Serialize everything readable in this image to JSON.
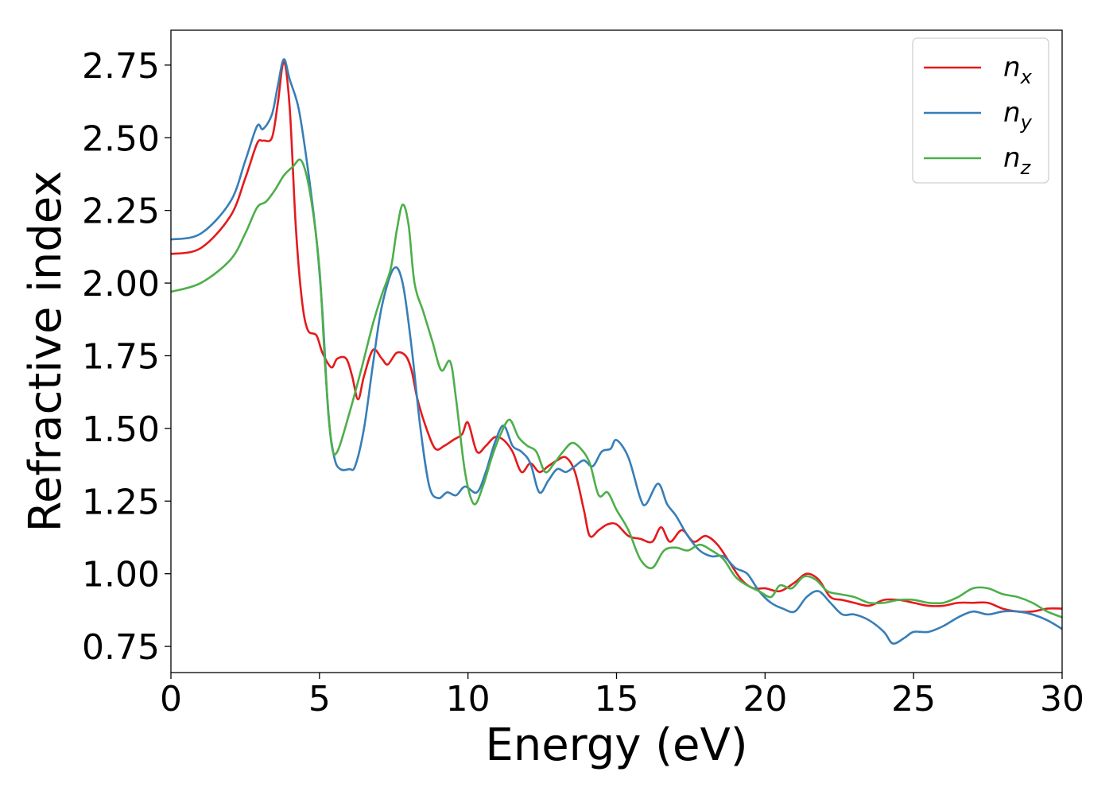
{
  "chart_data": {
    "type": "line",
    "title": "",
    "xlabel": "Energy (eV)",
    "ylabel": "Refractive index",
    "xlim": [
      0,
      30
    ],
    "ylim": [
      0.66,
      2.87
    ],
    "xticks": [
      0,
      5,
      10,
      15,
      20,
      25,
      30
    ],
    "xtick_labels": [
      "0",
      "5",
      "10",
      "15",
      "20",
      "25",
      "30"
    ],
    "yticks": [
      0.75,
      1.0,
      1.25,
      1.5,
      1.75,
      2.0,
      2.25,
      2.5,
      2.75
    ],
    "ytick_labels": [
      "0.75",
      "1.00",
      "1.25",
      "1.50",
      "1.75",
      "2.00",
      "2.25",
      "2.50",
      "2.75"
    ],
    "grid": false,
    "legend": "top-right",
    "series": [
      {
        "name_base": "n",
        "name_sub": "x",
        "color": "#e41a1c",
        "points": [
          [
            0,
            2.1
          ],
          [
            1,
            2.12
          ],
          [
            2,
            2.23
          ],
          [
            2.5,
            2.36
          ],
          [
            2.9,
            2.48
          ],
          [
            3.1,
            2.49
          ],
          [
            3.4,
            2.5
          ],
          [
            3.6,
            2.62
          ],
          [
            3.8,
            2.76
          ],
          [
            4.0,
            2.6
          ],
          [
            4.2,
            2.2
          ],
          [
            4.4,
            1.95
          ],
          [
            4.6,
            1.84
          ],
          [
            4.9,
            1.82
          ],
          [
            5.1,
            1.76
          ],
          [
            5.4,
            1.71
          ],
          [
            5.6,
            1.74
          ],
          [
            5.9,
            1.74
          ],
          [
            6.1,
            1.68
          ],
          [
            6.3,
            1.6
          ],
          [
            6.5,
            1.68
          ],
          [
            6.8,
            1.77
          ],
          [
            7.1,
            1.74
          ],
          [
            7.3,
            1.72
          ],
          [
            7.6,
            1.76
          ],
          [
            7.9,
            1.75
          ],
          [
            8.1,
            1.7
          ],
          [
            8.3,
            1.6
          ],
          [
            8.6,
            1.5
          ],
          [
            8.9,
            1.43
          ],
          [
            9.2,
            1.44
          ],
          [
            9.5,
            1.46
          ],
          [
            9.8,
            1.48
          ],
          [
            10.0,
            1.52
          ],
          [
            10.3,
            1.42
          ],
          [
            10.6,
            1.44
          ],
          [
            10.9,
            1.47
          ],
          [
            11.2,
            1.46
          ],
          [
            11.5,
            1.42
          ],
          [
            11.8,
            1.35
          ],
          [
            12.1,
            1.38
          ],
          [
            12.4,
            1.35
          ],
          [
            12.7,
            1.37
          ],
          [
            13.0,
            1.39
          ],
          [
            13.3,
            1.4
          ],
          [
            13.6,
            1.35
          ],
          [
            13.9,
            1.22
          ],
          [
            14.1,
            1.13
          ],
          [
            14.4,
            1.15
          ],
          [
            14.7,
            1.17
          ],
          [
            15.0,
            1.17
          ],
          [
            15.4,
            1.13
          ],
          [
            15.8,
            1.12
          ],
          [
            16.2,
            1.11
          ],
          [
            16.5,
            1.16
          ],
          [
            16.8,
            1.11
          ],
          [
            17.2,
            1.15
          ],
          [
            17.6,
            1.11
          ],
          [
            18.0,
            1.13
          ],
          [
            18.4,
            1.1
          ],
          [
            18.8,
            1.04
          ],
          [
            19.2,
            0.98
          ],
          [
            19.6,
            0.95
          ],
          [
            20.0,
            0.95
          ],
          [
            20.5,
            0.94
          ],
          [
            21.0,
            0.97
          ],
          [
            21.4,
            1.0
          ],
          [
            21.8,
            0.98
          ],
          [
            22.2,
            0.92
          ],
          [
            22.6,
            0.91
          ],
          [
            23.0,
            0.9
          ],
          [
            23.5,
            0.89
          ],
          [
            24.0,
            0.91
          ],
          [
            24.5,
            0.91
          ],
          [
            25.0,
            0.9
          ],
          [
            25.5,
            0.89
          ],
          [
            26.0,
            0.89
          ],
          [
            26.5,
            0.9
          ],
          [
            27.0,
            0.9
          ],
          [
            27.5,
            0.9
          ],
          [
            28.0,
            0.88
          ],
          [
            28.5,
            0.87
          ],
          [
            29.0,
            0.87
          ],
          [
            29.5,
            0.88
          ],
          [
            30.0,
            0.88
          ]
        ]
      },
      {
        "name_base": "n",
        "name_sub": "y",
        "color": "#377eb8",
        "points": [
          [
            0,
            2.15
          ],
          [
            1,
            2.17
          ],
          [
            2,
            2.28
          ],
          [
            2.5,
            2.42
          ],
          [
            2.9,
            2.54
          ],
          [
            3.1,
            2.53
          ],
          [
            3.4,
            2.58
          ],
          [
            3.6,
            2.68
          ],
          [
            3.8,
            2.77
          ],
          [
            4.0,
            2.7
          ],
          [
            4.3,
            2.6
          ],
          [
            4.6,
            2.4
          ],
          [
            4.9,
            2.15
          ],
          [
            5.1,
            1.9
          ],
          [
            5.3,
            1.55
          ],
          [
            5.5,
            1.4
          ],
          [
            5.7,
            1.36
          ],
          [
            6.0,
            1.36
          ],
          [
            6.2,
            1.37
          ],
          [
            6.5,
            1.5
          ],
          [
            6.8,
            1.72
          ],
          [
            7.1,
            1.92
          ],
          [
            7.5,
            2.05
          ],
          [
            7.8,
            2.0
          ],
          [
            8.1,
            1.78
          ],
          [
            8.4,
            1.5
          ],
          [
            8.7,
            1.3
          ],
          [
            9.0,
            1.26
          ],
          [
            9.3,
            1.28
          ],
          [
            9.6,
            1.27
          ],
          [
            9.9,
            1.3
          ],
          [
            10.3,
            1.28
          ],
          [
            10.6,
            1.35
          ],
          [
            10.9,
            1.45
          ],
          [
            11.2,
            1.51
          ],
          [
            11.5,
            1.44
          ],
          [
            11.8,
            1.42
          ],
          [
            12.1,
            1.38
          ],
          [
            12.4,
            1.28
          ],
          [
            12.7,
            1.32
          ],
          [
            13.0,
            1.36
          ],
          [
            13.3,
            1.35
          ],
          [
            13.6,
            1.37
          ],
          [
            13.9,
            1.39
          ],
          [
            14.2,
            1.37
          ],
          [
            14.5,
            1.42
          ],
          [
            14.8,
            1.43
          ],
          [
            15.0,
            1.46
          ],
          [
            15.4,
            1.4
          ],
          [
            15.8,
            1.26
          ],
          [
            16.0,
            1.24
          ],
          [
            16.4,
            1.31
          ],
          [
            16.7,
            1.24
          ],
          [
            17.0,
            1.2
          ],
          [
            17.4,
            1.13
          ],
          [
            17.8,
            1.08
          ],
          [
            18.2,
            1.06
          ],
          [
            18.6,
            1.06
          ],
          [
            19.0,
            1.02
          ],
          [
            19.4,
            1.0
          ],
          [
            19.8,
            0.94
          ],
          [
            20.2,
            0.9
          ],
          [
            20.6,
            0.88
          ],
          [
            21.0,
            0.87
          ],
          [
            21.4,
            0.92
          ],
          [
            21.8,
            0.94
          ],
          [
            22.2,
            0.9
          ],
          [
            22.6,
            0.86
          ],
          [
            23.0,
            0.86
          ],
          [
            23.5,
            0.84
          ],
          [
            24.0,
            0.8
          ],
          [
            24.3,
            0.76
          ],
          [
            24.7,
            0.78
          ],
          [
            25.0,
            0.8
          ],
          [
            25.5,
            0.8
          ],
          [
            26.0,
            0.82
          ],
          [
            26.5,
            0.85
          ],
          [
            27.0,
            0.87
          ],
          [
            27.5,
            0.86
          ],
          [
            28.0,
            0.87
          ],
          [
            28.5,
            0.87
          ],
          [
            29.0,
            0.86
          ],
          [
            29.5,
            0.84
          ],
          [
            30.0,
            0.81
          ]
        ]
      },
      {
        "name_base": "n",
        "name_sub": "z",
        "color": "#4daf4a",
        "points": [
          [
            0,
            1.97
          ],
          [
            1,
            2.0
          ],
          [
            2,
            2.08
          ],
          [
            2.5,
            2.17
          ],
          [
            2.9,
            2.26
          ],
          [
            3.2,
            2.28
          ],
          [
            3.5,
            2.32
          ],
          [
            3.8,
            2.37
          ],
          [
            4.1,
            2.4
          ],
          [
            4.4,
            2.42
          ],
          [
            4.7,
            2.3
          ],
          [
            5.0,
            2.05
          ],
          [
            5.2,
            1.7
          ],
          [
            5.4,
            1.45
          ],
          [
            5.6,
            1.42
          ],
          [
            6.0,
            1.55
          ],
          [
            6.4,
            1.7
          ],
          [
            6.8,
            1.86
          ],
          [
            7.1,
            1.96
          ],
          [
            7.4,
            2.05
          ],
          [
            7.6,
            2.18
          ],
          [
            7.8,
            2.27
          ],
          [
            8.0,
            2.2
          ],
          [
            8.2,
            2.0
          ],
          [
            8.5,
            1.9
          ],
          [
            8.8,
            1.8
          ],
          [
            9.1,
            1.7
          ],
          [
            9.4,
            1.73
          ],
          [
            9.6,
            1.6
          ],
          [
            9.9,
            1.35
          ],
          [
            10.2,
            1.24
          ],
          [
            10.5,
            1.3
          ],
          [
            10.8,
            1.4
          ],
          [
            11.1,
            1.48
          ],
          [
            11.4,
            1.53
          ],
          [
            11.7,
            1.47
          ],
          [
            12.0,
            1.44
          ],
          [
            12.3,
            1.42
          ],
          [
            12.6,
            1.35
          ],
          [
            12.9,
            1.38
          ],
          [
            13.2,
            1.42
          ],
          [
            13.5,
            1.45
          ],
          [
            13.8,
            1.43
          ],
          [
            14.1,
            1.38
          ],
          [
            14.4,
            1.27
          ],
          [
            14.7,
            1.28
          ],
          [
            15.0,
            1.22
          ],
          [
            15.4,
            1.15
          ],
          [
            15.8,
            1.05
          ],
          [
            16.2,
            1.02
          ],
          [
            16.6,
            1.08
          ],
          [
            17.0,
            1.09
          ],
          [
            17.4,
            1.08
          ],
          [
            17.8,
            1.1
          ],
          [
            18.2,
            1.08
          ],
          [
            18.6,
            1.05
          ],
          [
            19.0,
            0.99
          ],
          [
            19.4,
            0.96
          ],
          [
            19.8,
            0.94
          ],
          [
            20.2,
            0.92
          ],
          [
            20.5,
            0.96
          ],
          [
            20.9,
            0.95
          ],
          [
            21.3,
            0.99
          ],
          [
            21.7,
            0.98
          ],
          [
            22.1,
            0.94
          ],
          [
            22.5,
            0.93
          ],
          [
            23.0,
            0.92
          ],
          [
            23.5,
            0.9
          ],
          [
            24.0,
            0.9
          ],
          [
            24.5,
            0.91
          ],
          [
            25.0,
            0.91
          ],
          [
            25.5,
            0.9
          ],
          [
            26.0,
            0.9
          ],
          [
            26.5,
            0.92
          ],
          [
            27.0,
            0.95
          ],
          [
            27.5,
            0.95
          ],
          [
            28.0,
            0.93
          ],
          [
            28.5,
            0.92
          ],
          [
            29.0,
            0.9
          ],
          [
            29.5,
            0.87
          ],
          [
            30.0,
            0.85
          ]
        ]
      }
    ]
  }
}
